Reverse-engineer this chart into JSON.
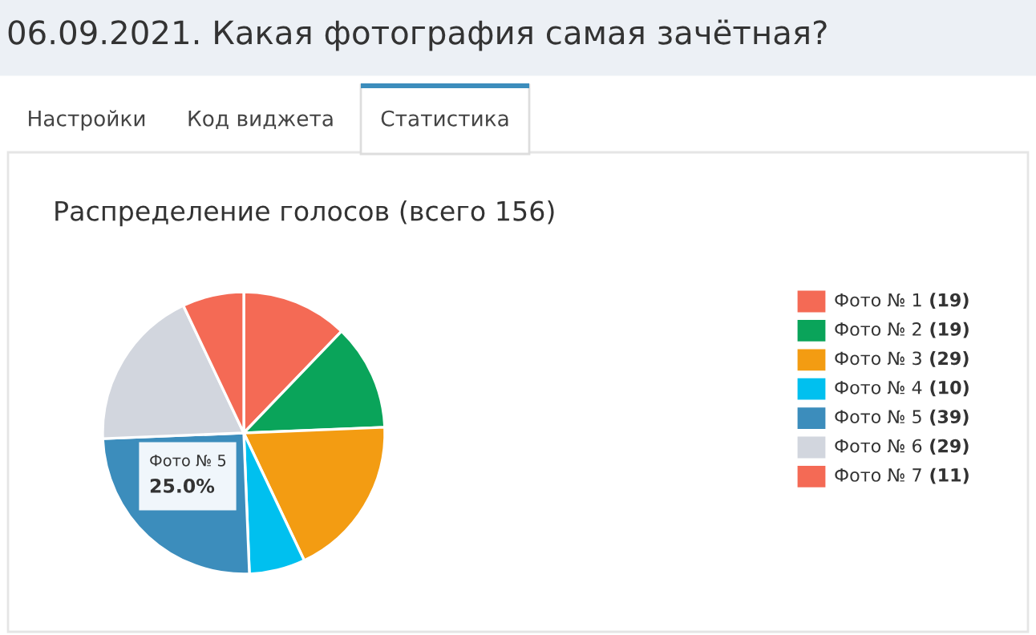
{
  "chart_data": {
    "type": "pie",
    "title": "06.09.2021. Какая фотография самая зачётная?",
    "subtitle": "Распределение голосов (всего 156)",
    "categories": [
      "Фото № 1",
      "Фото № 2",
      "Фото № 3",
      "Фото № 4",
      "Фото № 5",
      "Фото № 6",
      "Фото № 7"
    ],
    "values": [
      19,
      19,
      29,
      10,
      39,
      29,
      11
    ],
    "value_labels": [
      "(19)",
      "(19)",
      "(29)",
      "(10)",
      "(39)",
      "(29)",
      "(11)"
    ],
    "colors": [
      "#f46a55",
      "#0aa45a",
      "#f39c12",
      "#00c0ef",
      "#3c8dbc",
      "#d2d6de",
      "#f46a55"
    ],
    "legend": "right",
    "annotations": [
      "Настройки",
      "Код виджета",
      "Статистика",
      "Фото № 5\n25.0%"
    ]
  }
}
